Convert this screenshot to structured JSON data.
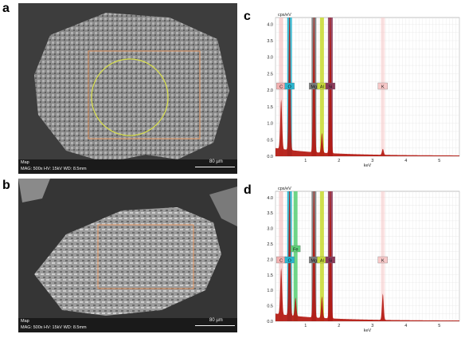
{
  "panels": {
    "a": {
      "label": "a"
    },
    "b": {
      "label": "b"
    },
    "c": {
      "label": "c"
    },
    "d": {
      "label": "d"
    }
  },
  "sem_a": {
    "line1": "Map",
    "line2": "MAG: 500x  HV: 15kV  WD: 8.5mm",
    "scale": "80 µm"
  },
  "sem_b": {
    "line1": "Map",
    "line2": "MAG: 500x  HV: 15kV  WD: 8.5mm",
    "scale": "80 µm"
  },
  "chart_data": [
    {
      "type": "area",
      "ylabel": "cps/eV",
      "xlabel": "keV",
      "xlim": [
        0.1,
        5.6
      ],
      "ylim": [
        0,
        4.2
      ],
      "yticks": [
        "0.0",
        "0.5",
        "1.0",
        "1.5",
        "2.0",
        "2.5",
        "3.0",
        "3.5",
        "4.0"
      ],
      "xticks": [
        "1",
        "2",
        "3",
        "4",
        "5"
      ],
      "grid": true,
      "element_labels": [
        {
          "label": "C",
          "kev": 0.27,
          "peak": 0.9
        },
        {
          "label": "O",
          "kev": 0.52,
          "peak": 4.5
        },
        {
          "label": "Mg",
          "kev": 1.25,
          "peak": 4.5
        },
        {
          "label": "Al",
          "kev": 1.49,
          "peak": 0.6
        },
        {
          "label": "Si",
          "kev": 1.74,
          "peak": 4.5
        },
        {
          "label": "K",
          "kev": 3.31,
          "peak": 0.18
        }
      ]
    },
    {
      "type": "area",
      "ylabel": "cps/eV",
      "xlabel": "keV",
      "xlim": [
        0.1,
        5.6
      ],
      "ylim": [
        0,
        4.2
      ],
      "yticks": [
        "0.0",
        "0.5",
        "1.0",
        "1.5",
        "2.0",
        "2.5",
        "3.0",
        "3.5",
        "4.0"
      ],
      "xticks": [
        "1",
        "2",
        "3",
        "4",
        "5"
      ],
      "grid": true,
      "element_labels": [
        {
          "label": "C",
          "kev": 0.27,
          "peak": 0.9
        },
        {
          "label": "Fe",
          "kev": 0.7,
          "peak": 0.6
        },
        {
          "label": "O",
          "kev": 0.52,
          "peak": 4.5
        },
        {
          "label": "Mg",
          "kev": 1.25,
          "peak": 4.5
        },
        {
          "label": "Al",
          "kev": 1.49,
          "peak": 0.7
        },
        {
          "label": "Si",
          "kev": 1.74,
          "peak": 4.5
        },
        {
          "label": "K",
          "kev": 3.31,
          "peak": 0.85
        }
      ]
    }
  ],
  "colors": {
    "spectrum": "#b3170f",
    "O_band": "#29b5cf",
    "Mg_band": "#7c7c7c",
    "Si_band": "#8b3a5a",
    "Al_band": "#c9dc3a",
    "K_band": "#f7c8c8",
    "C_band": "#f3b0b0",
    "Fe_band": "#5fd07a"
  }
}
